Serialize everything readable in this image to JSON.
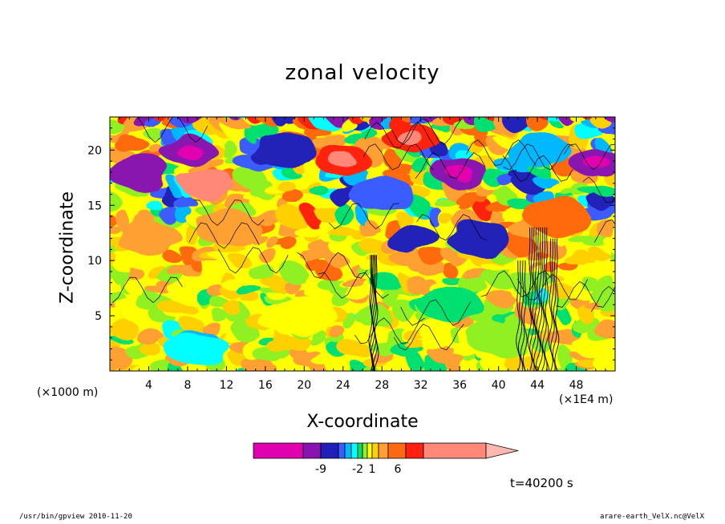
{
  "chart_data": {
    "type": "heatmap",
    "title": "zonal velocity",
    "xlabel": "X-coordinate",
    "ylabel": "Z-coordinate",
    "x_unit_note": "(×1000 m)",
    "x_scale_note": "(×1E4 m)",
    "time_label": "t=40200 s",
    "xlim": [
      0,
      52
    ],
    "ylim": [
      0,
      23
    ],
    "x_ticks": [
      4,
      8,
      12,
      16,
      20,
      24,
      28,
      32,
      36,
      40,
      44,
      48
    ],
    "y_ticks": [
      5,
      10,
      15,
      20
    ],
    "colorbar": {
      "tick_labels": [
        {
          "label": "-9",
          "value": -9
        },
        {
          "label": "-2",
          "value": -2
        },
        {
          "label": "1",
          "value": 1
        },
        {
          "label": "6",
          "value": 6
        }
      ],
      "colors": [
        "#e000b0",
        "#8a12b0",
        "#2020b8",
        "#3a5cff",
        "#00b8ff",
        "#00ffff",
        "#00e070",
        "#90f020",
        "#ffff00",
        "#ffd000",
        "#ffa030",
        "#ff6a10",
        "#ff2010",
        "#ff8878"
      ]
    },
    "features": [
      {
        "label": "strong-negative-upper-left",
        "x": 8,
        "z": 20,
        "value": -8
      },
      {
        "label": "positive-jet-core",
        "x": 10,
        "z": 17,
        "value": 9
      },
      {
        "label": "positive-upper-center",
        "x": 24,
        "z": 19,
        "value": 7
      },
      {
        "label": "positive-upper-right",
        "x": 31,
        "z": 21,
        "value": 7
      },
      {
        "label": "negative-mid-center",
        "x": 31,
        "z": 12,
        "value": -6
      },
      {
        "label": "negative-upper-right",
        "x": 36,
        "z": 18,
        "value": -7
      },
      {
        "label": "negative-far-right",
        "x": 50,
        "z": 19,
        "value": -8
      },
      {
        "label": "negative-lower-left",
        "x": 9,
        "z": 3,
        "value": -3
      },
      {
        "label": "wave-crest-x27",
        "x": 27,
        "z": 5,
        "value": 0
      },
      {
        "label": "wave-crest-x44",
        "x": 44,
        "z": 8,
        "value": 0
      }
    ]
  },
  "footer": {
    "left": "/usr/bin/gpview   2010-11-20",
    "right": "arare-earth_VelX.nc@VelX"
  }
}
